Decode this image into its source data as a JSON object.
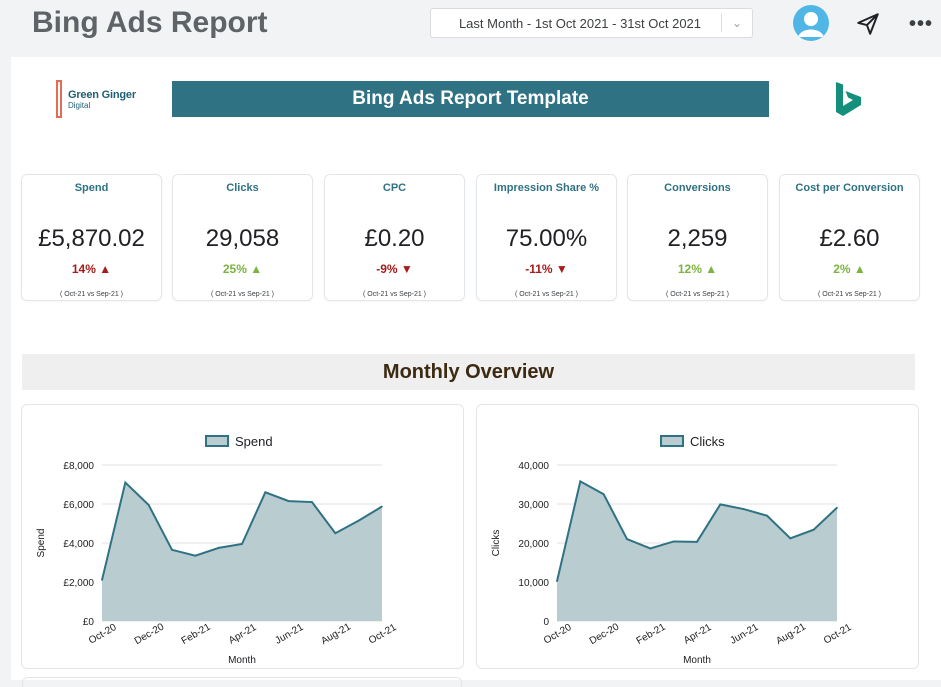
{
  "header": {
    "title": "Bing Ads Report",
    "date_range": "Last Month - 1st Oct 2021 - 31st Oct 2021"
  },
  "report": {
    "logo_text_main": "Green Ginger",
    "logo_text_sub": "Digital",
    "banner_title": "Bing Ads Report Template",
    "section_title": "Monthly Overview"
  },
  "kpis": [
    {
      "label": "Spend",
      "value": "£5,870.02",
      "delta": "14%",
      "direction": "up",
      "tone": "negative",
      "comparison": "( Oct-21 vs Sep-21 )"
    },
    {
      "label": "Clicks",
      "value": "29,058",
      "delta": "25%",
      "direction": "up",
      "tone": "positive",
      "comparison": "( Oct-21 vs Sep-21 )"
    },
    {
      "label": "CPC",
      "value": "£0.20",
      "delta": "-9%",
      "direction": "down",
      "tone": "negative",
      "comparison": "( Oct-21 vs Sep-21 )"
    },
    {
      "label": "Impression Share %",
      "value": "75.00%",
      "delta": "-11%",
      "direction": "down",
      "tone": "negative",
      "comparison": "( Oct-21 vs Sep-21 )"
    },
    {
      "label": "Conversions",
      "value": "2,259",
      "delta": "12%",
      "direction": "up",
      "tone": "positive",
      "comparison": "( Oct-21 vs Sep-21 )"
    },
    {
      "label": "Cost per Conversion",
      "value": "£2.60",
      "delta": "2%",
      "direction": "up",
      "tone": "positive",
      "comparison": "( Oct-21 vs Sep-21 )"
    }
  ],
  "colors": {
    "accent": "#2f7283",
    "area_fill": "#b9ccd0",
    "line": "#2f7283",
    "positive": "#7cb342",
    "negative": "#a61b1b"
  },
  "chart_data": [
    {
      "type": "area",
      "title": "",
      "legend": "Spend",
      "legend_position": "top-center",
      "xlabel": "Month",
      "ylabel": "Spend",
      "ylim": [
        0,
        8000
      ],
      "yticks": [
        "£0",
        "£2,000",
        "£4,000",
        "£6,000",
        "£8,000"
      ],
      "ytick_values": [
        0,
        2000,
        4000,
        6000,
        8000
      ],
      "x_tick_labels": [
        "Oct-20",
        "Dec-20",
        "Feb-21",
        "Apr-21",
        "Jun-21",
        "Aug-21",
        "Oct-21"
      ],
      "x": [
        "Oct-20",
        "Nov-20",
        "Dec-20",
        "Jan-21",
        "Feb-21",
        "Mar-21",
        "Apr-21",
        "May-21",
        "Jun-21",
        "Jul-21",
        "Aug-21",
        "Sep-21",
        "Oct-21"
      ],
      "values": [
        2100,
        7100,
        5950,
        3650,
        3350,
        3750,
        3950,
        6600,
        6150,
        6100,
        4500,
        5150,
        5870
      ],
      "grid": true
    },
    {
      "type": "area",
      "title": "",
      "legend": "Clicks",
      "legend_position": "top-center",
      "xlabel": "Month",
      "ylabel": "Clicks",
      "ylim": [
        0,
        40000
      ],
      "yticks": [
        "0",
        "10,000",
        "20,000",
        "30,000",
        "40,000"
      ],
      "ytick_values": [
        0,
        10000,
        20000,
        30000,
        40000
      ],
      "x_tick_labels": [
        "Oct-20",
        "Dec-20",
        "Feb-21",
        "Apr-21",
        "Jun-21",
        "Aug-21",
        "Oct-21"
      ],
      "x": [
        "Oct-20",
        "Nov-20",
        "Dec-20",
        "Jan-21",
        "Feb-21",
        "Mar-21",
        "Apr-21",
        "May-21",
        "Jun-21",
        "Jul-21",
        "Aug-21",
        "Sep-21",
        "Oct-21"
      ],
      "values": [
        10200,
        35800,
        32500,
        21000,
        18600,
        20400,
        20300,
        29900,
        28700,
        27000,
        21200,
        23400,
        29058
      ],
      "grid": true
    }
  ]
}
